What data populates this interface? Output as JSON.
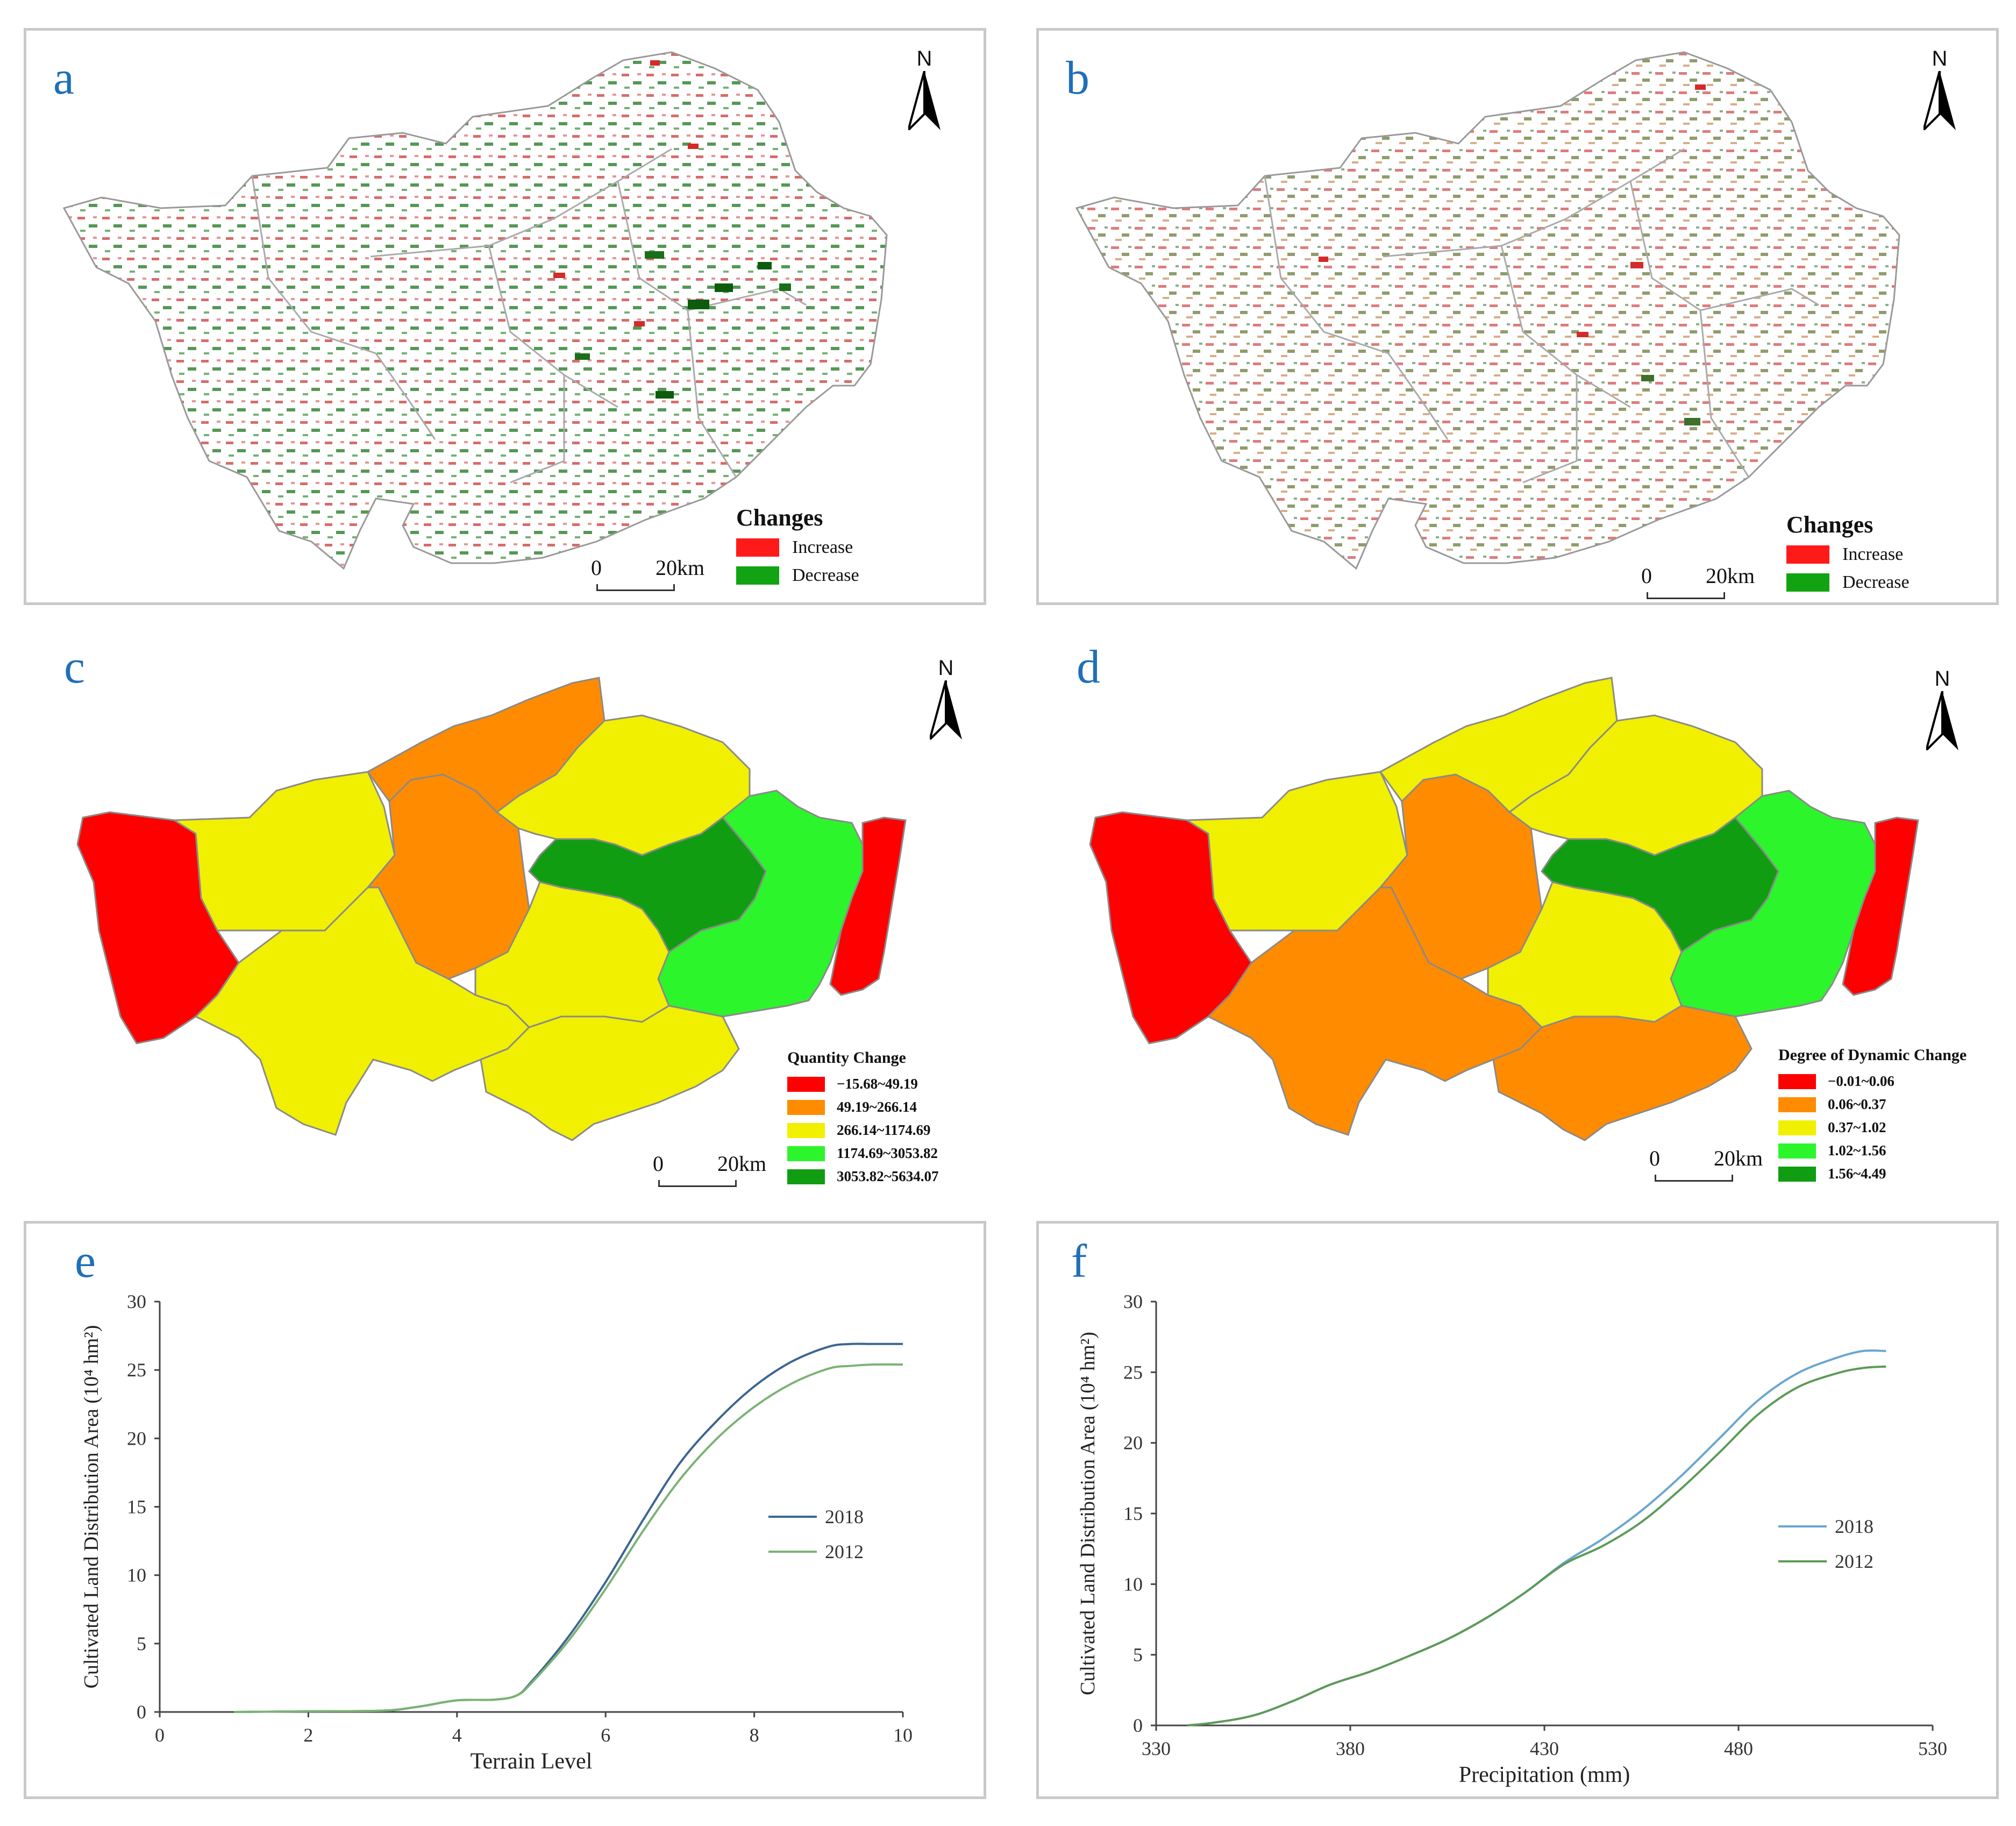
{
  "panels": {
    "a": {
      "label": "a",
      "legend_title": "Changes",
      "items": [
        "Increase",
        "Decrease"
      ],
      "colors": [
        "#ff1a1a",
        "#12a312"
      ]
    },
    "b": {
      "label": "b",
      "legend_title": "Changes",
      "items": [
        "Increase",
        "Decrease"
      ],
      "colors": [
        "#ff1a1a",
        "#12a312"
      ]
    },
    "c": {
      "label": "c",
      "legend_title": "Quantity Change",
      "items": [
        "−15.68~49.19",
        "49.19~266.14",
        "266.14~1174.69",
        "1174.69~3053.82",
        "3053.82~5634.07"
      ],
      "colors": [
        "#ff0000",
        "#ff8c00",
        "#f0f000",
        "#2cf52c",
        "#119d11"
      ]
    },
    "d": {
      "label": "d",
      "legend_title": "Degree of Dynamic Change",
      "items": [
        "−0.01~0.06",
        "0.06~0.37",
        "0.37~1.02",
        "1.02~1.56",
        "1.56~4.49"
      ],
      "colors": [
        "#ff0000",
        "#ff8c00",
        "#f0f000",
        "#2cf52c",
        "#119d11"
      ]
    },
    "e": {
      "label": "e"
    },
    "f": {
      "label": "f"
    }
  },
  "common": {
    "north": "N",
    "scale_zero": "0",
    "scale_twenty": "20",
    "scale_unit": "km"
  },
  "chart_data": [
    {
      "type": "line",
      "panel": "e",
      "title": "",
      "xlabel": "Terrain Level",
      "ylabel": "Cultivated Land Distribution Area (10⁴ hm²)",
      "xlim": [
        0,
        10
      ],
      "ylim": [
        0,
        30
      ],
      "xticks": [
        "0",
        "2",
        "4",
        "6",
        "8",
        "10"
      ],
      "yticks": [
        "0",
        "5",
        "10",
        "15",
        "20",
        "25",
        "30"
      ],
      "legend": "center-right",
      "series": [
        {
          "name": "2018",
          "color": "#3d6591",
          "x": [
            1,
            2,
            3,
            3.5,
            4,
            4.5,
            4.8,
            5,
            5.5,
            6,
            6.5,
            7,
            7.5,
            8,
            8.5,
            9,
            9.3,
            9.6,
            10
          ],
          "y": [
            0,
            0.05,
            0.1,
            0.4,
            0.85,
            0.9,
            1.2,
            2.2,
            5.5,
            9.5,
            14.0,
            18.2,
            21.3,
            23.8,
            25.6,
            26.7,
            26.9,
            26.9,
            26.9
          ]
        },
        {
          "name": "2012",
          "color": "#7ab373",
          "x": [
            1,
            2,
            3,
            3.5,
            4,
            4.5,
            4.8,
            5,
            5.5,
            6,
            6.5,
            7,
            7.5,
            8,
            8.5,
            9,
            9.3,
            9.6,
            10
          ],
          "y": [
            0,
            0.05,
            0.1,
            0.4,
            0.85,
            0.9,
            1.2,
            2.1,
            5.2,
            9.0,
            13.2,
            17.0,
            20.0,
            22.3,
            24.0,
            25.1,
            25.3,
            25.4,
            25.4
          ]
        }
      ]
    },
    {
      "type": "line",
      "panel": "f",
      "title": "",
      "xlabel": "Precipitation (mm)",
      "ylabel": "Cultivated Land Distribution Area (10⁴ hm²)",
      "xlim": [
        330,
        530
      ],
      "ylim": [
        0,
        30
      ],
      "xticks": [
        "330",
        "380",
        "430",
        "480",
        "530"
      ],
      "yticks": [
        "0",
        "5",
        "10",
        "15",
        "20",
        "25",
        "30"
      ],
      "legend": "center-right",
      "series": [
        {
          "name": "2018",
          "color": "#6aa6cf",
          "x": [
            338,
            345,
            355,
            365,
            375,
            385,
            395,
            405,
            415,
            425,
            435,
            445,
            455,
            465,
            475,
            485,
            495,
            505,
            512,
            518
          ],
          "y": [
            0,
            0.2,
            0.7,
            1.7,
            2.9,
            3.8,
            4.9,
            6.1,
            7.6,
            9.4,
            11.5,
            13.2,
            15.2,
            17.6,
            20.3,
            23.0,
            24.9,
            26.0,
            26.5,
            26.5
          ]
        },
        {
          "name": "2012",
          "color": "#5d9a57",
          "x": [
            338,
            345,
            355,
            365,
            375,
            385,
            395,
            405,
            415,
            425,
            435,
            445,
            455,
            465,
            475,
            485,
            495,
            505,
            512,
            518
          ],
          "y": [
            0,
            0.2,
            0.7,
            1.7,
            2.9,
            3.8,
            4.9,
            6.1,
            7.6,
            9.4,
            11.4,
            12.7,
            14.4,
            16.7,
            19.3,
            22.0,
            23.9,
            24.9,
            25.3,
            25.4
          ]
        }
      ]
    }
  ]
}
